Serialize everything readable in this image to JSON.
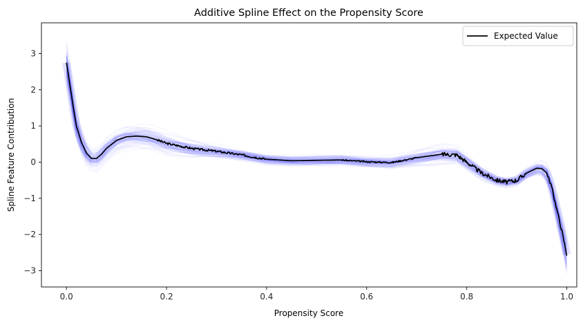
{
  "chart_data": {
    "type": "line",
    "title": "Additive Spline Effect on the Propensity Score",
    "xlabel": "Propensity Score",
    "ylabel": "Spline Feature Contribution",
    "xlim": [
      -0.05,
      1.02
    ],
    "ylim": [
      -3.45,
      3.85
    ],
    "xticks": [
      0.0,
      0.2,
      0.4,
      0.6,
      0.8,
      1.0
    ],
    "xtick_labels": [
      "0.0",
      "0.2",
      "0.4",
      "0.6",
      "0.8",
      "1.0"
    ],
    "yticks": [
      -3,
      -2,
      -1,
      0,
      1,
      2,
      3
    ],
    "ytick_labels": [
      "−3",
      "−2",
      "−1",
      "0",
      "1",
      "2",
      "3"
    ],
    "grid": false,
    "legend": {
      "position": "top-right",
      "entries": [
        "Expected Value"
      ]
    },
    "series": [
      {
        "name": "Expected Value",
        "color": "#000000",
        "x": [
          0.0,
          0.005,
          0.01,
          0.015,
          0.02,
          0.03,
          0.04,
          0.05,
          0.06,
          0.07,
          0.08,
          0.1,
          0.12,
          0.14,
          0.16,
          0.18,
          0.2,
          0.25,
          0.3,
          0.35,
          0.4,
          0.45,
          0.5,
          0.55,
          0.6,
          0.65,
          0.7,
          0.75,
          0.78,
          0.8,
          0.83,
          0.86,
          0.88,
          0.9,
          0.92,
          0.94,
          0.95,
          0.96,
          0.97,
          0.98,
          0.99,
          1.0
        ],
        "y": [
          2.75,
          2.3,
          1.85,
          1.4,
          1.0,
          0.55,
          0.25,
          0.1,
          0.1,
          0.22,
          0.38,
          0.6,
          0.7,
          0.72,
          0.7,
          0.62,
          0.52,
          0.38,
          0.3,
          0.2,
          0.08,
          0.04,
          0.05,
          0.06,
          0.01,
          -0.01,
          0.12,
          0.22,
          0.2,
          0.0,
          -0.3,
          -0.5,
          -0.55,
          -0.5,
          -0.3,
          -0.17,
          -0.18,
          -0.3,
          -0.7,
          -1.3,
          -1.9,
          -2.55
        ]
      }
    ],
    "band_color": "#0000ff"
  }
}
